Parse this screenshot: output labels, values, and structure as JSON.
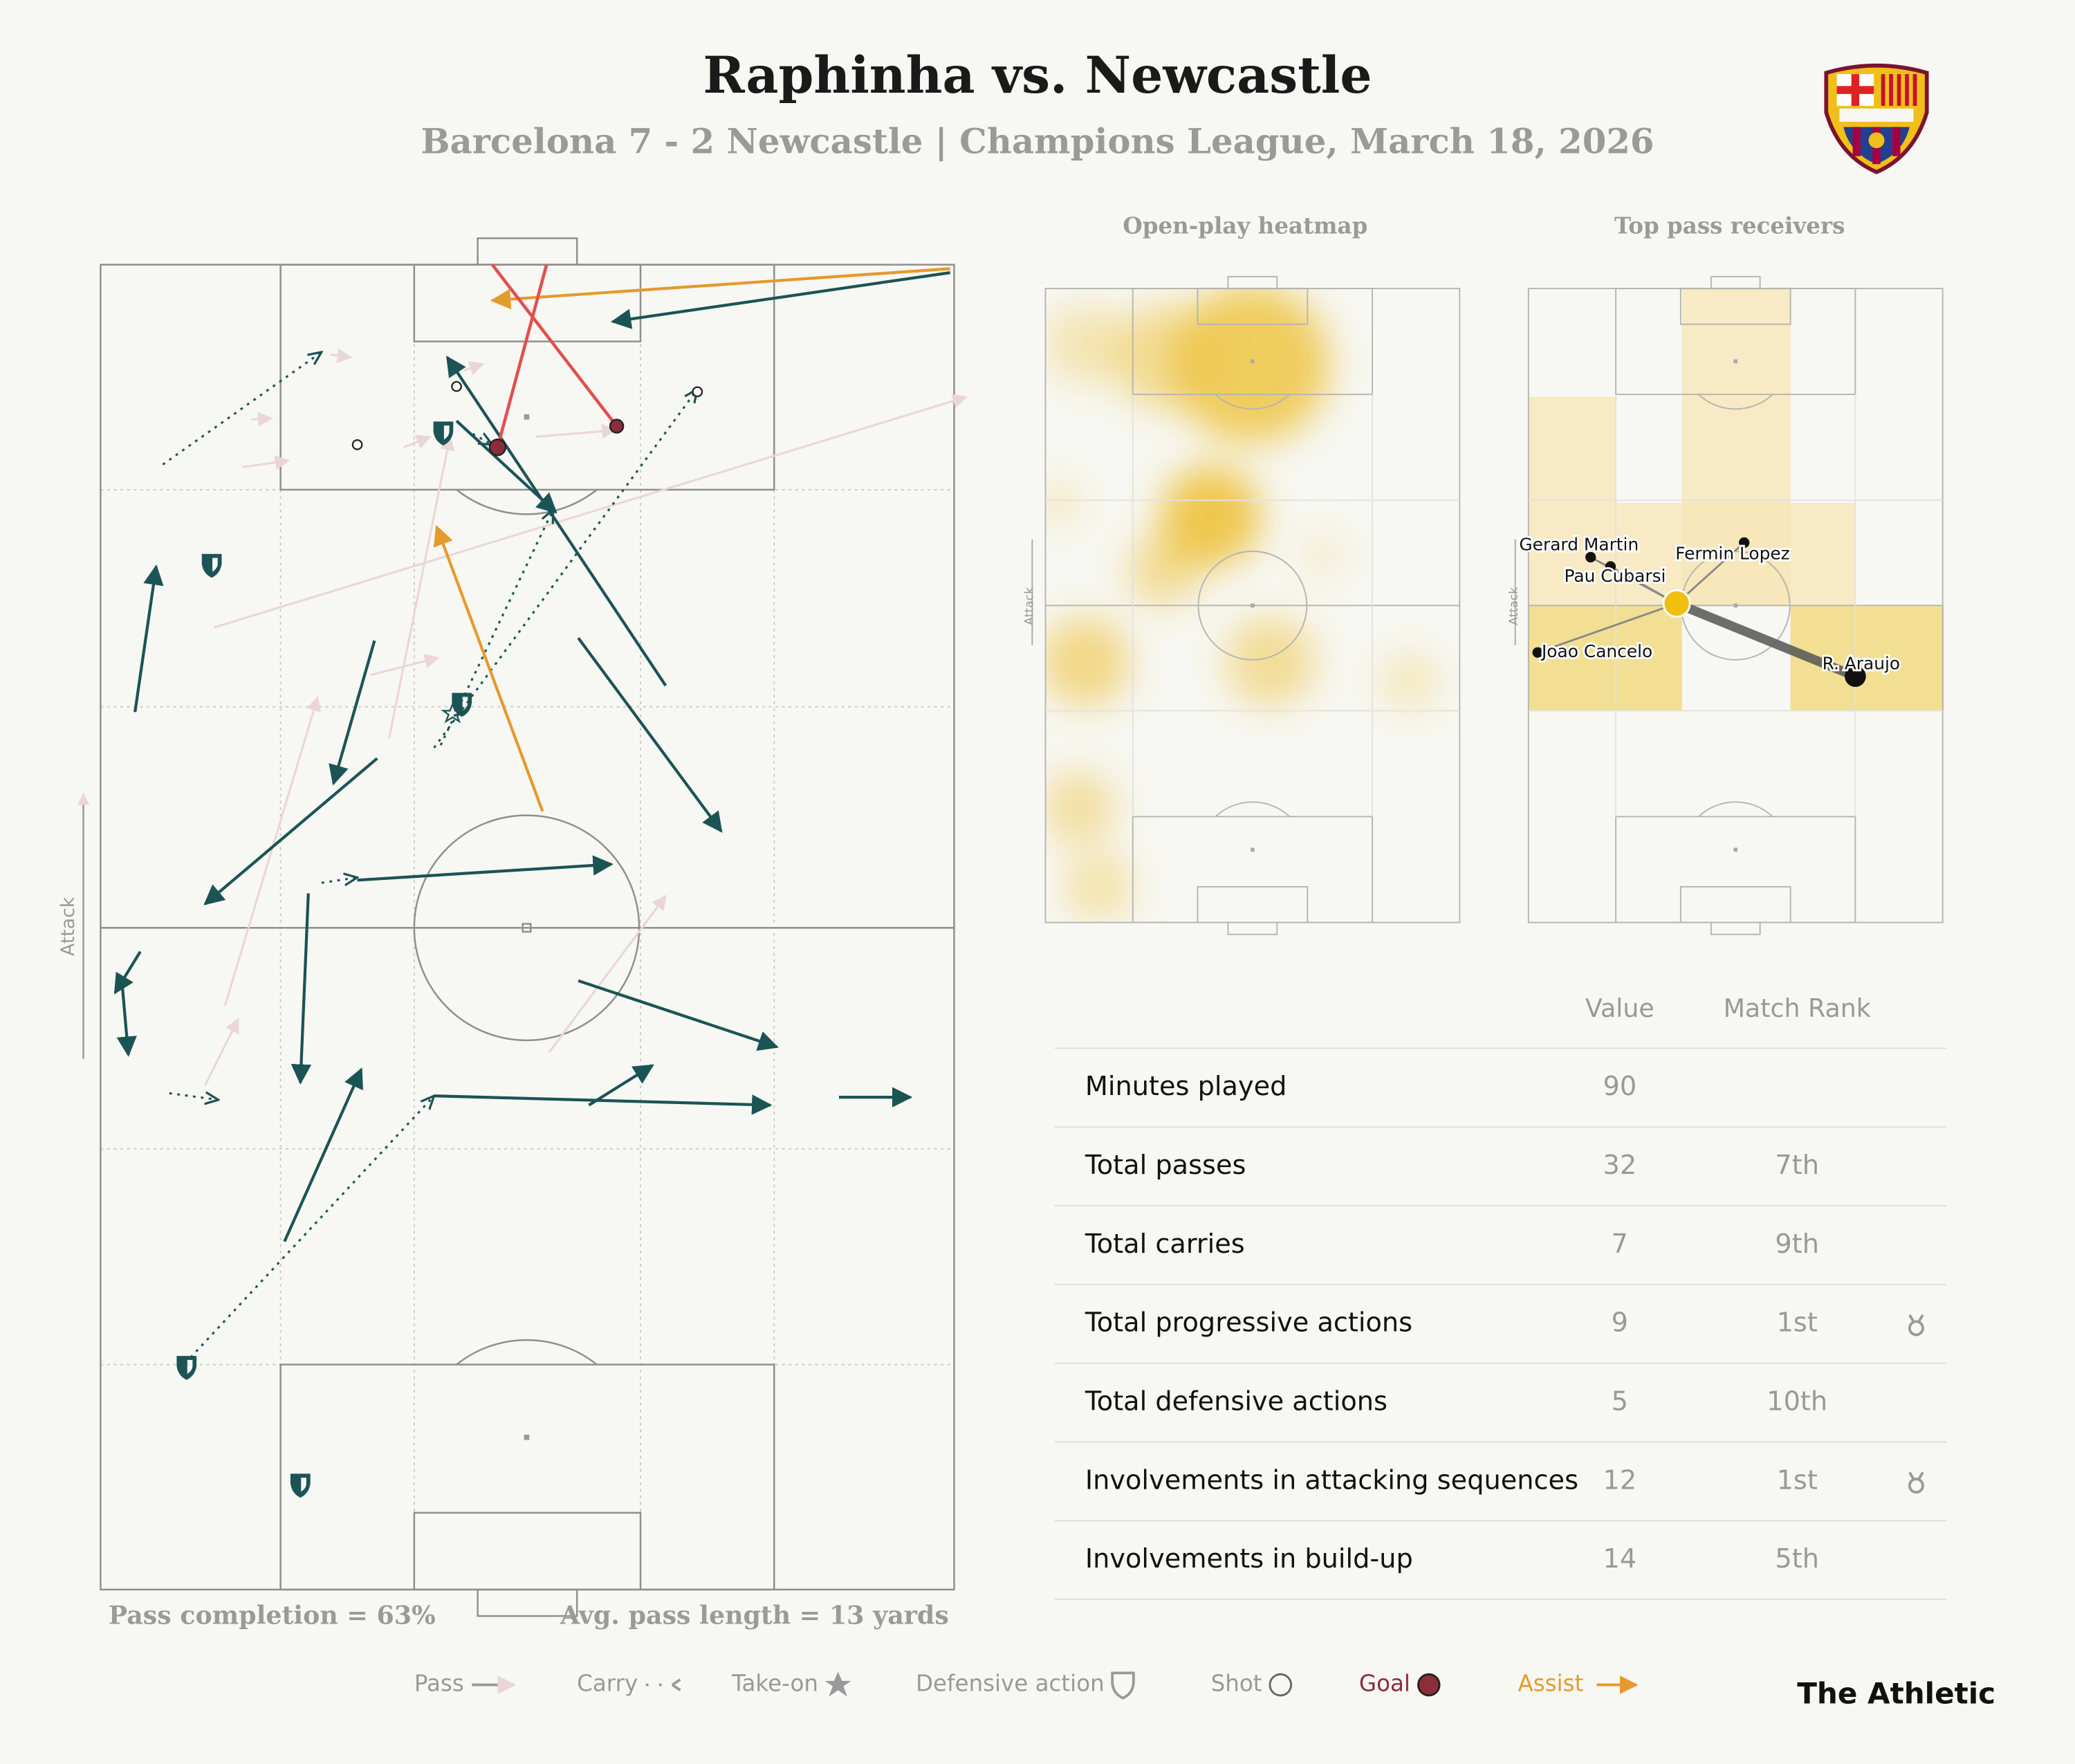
{
  "header": {
    "title": "Raphinha vs. Newcastle",
    "subtitle": "Barcelona 7 - 2 Newcastle | Champions League, March 18, 2026"
  },
  "pitch": {
    "axis_label": "Attack",
    "pass_completion": "Pass completion = 63%",
    "avg_pass_length": "Avg. pass length = 13 yards"
  },
  "heatmap": {
    "title": "Open-play heatmap",
    "axis_label": "Attack"
  },
  "receivers": {
    "title": "Top pass receivers",
    "axis_label": "Attack",
    "players": [
      "Gerard Martin",
      "Fermin Lopez",
      "Pau Cubarsi",
      "Joao Cancelo",
      "R. Araujo"
    ]
  },
  "table": {
    "headers": [
      "Value",
      "Match Rank"
    ],
    "rows": [
      {
        "label": "Minutes played",
        "value": 90
      },
      {
        "label": "Total passes",
        "value": 32,
        "rank": "7th"
      },
      {
        "label": "Total carries",
        "value": 7,
        "rank": "9th"
      },
      {
        "label": "Total progressive actions",
        "value": 9,
        "rank": "1st",
        "medal": true
      },
      {
        "label": "Total defensive actions",
        "value": 5,
        "rank": "10th"
      },
      {
        "label": "Involvements in attacking sequences",
        "value": 12,
        "rank": "1st",
        "medal": true
      },
      {
        "label": "Involvements in build-up",
        "value": 14,
        "rank": "5th"
      }
    ]
  },
  "legend": {
    "items": [
      "Pass",
      "Carry",
      "Take-on",
      "Defensive action",
      "Shot",
      "Goal",
      "Assist"
    ]
  },
  "brand": "The Athletic"
}
